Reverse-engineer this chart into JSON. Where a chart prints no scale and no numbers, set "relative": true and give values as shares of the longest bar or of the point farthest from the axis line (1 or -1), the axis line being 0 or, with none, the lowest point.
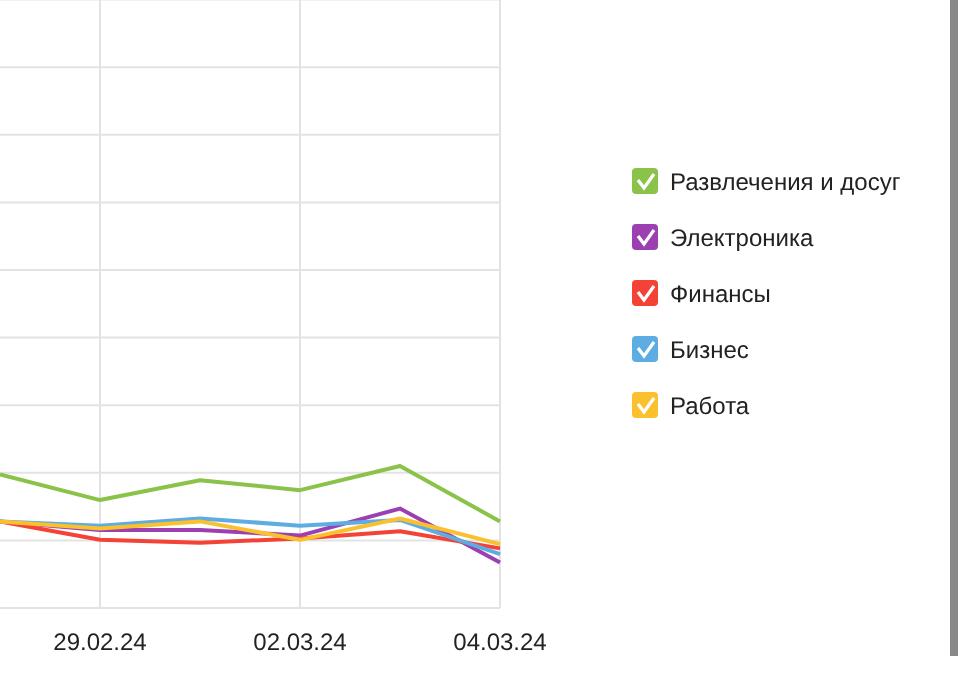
{
  "chart_data": {
    "type": "line",
    "relative": true,
    "x": [
      "2024-02-28",
      "2024-02-29",
      "2024-03-01",
      "2024-03-02",
      "2024-03-03",
      "2024-03-04"
    ],
    "xlim": [
      "2024-02-28",
      "2024-03-04"
    ],
    "xticks": [
      {
        "value": "2024-02-29",
        "label": "29.02.24"
      },
      {
        "value": "2024-03-02",
        "label": "02.03.24"
      },
      {
        "value": "2024-03-04",
        "label": "04.03.24"
      }
    ],
    "series": [
      {
        "name": "Развлечения и досуг",
        "color": "#8bc34a",
        "values": [
          0.94,
          0.76,
          0.9,
          0.83,
          1,
          0.61
        ]
      },
      {
        "name": "Электроника",
        "color": "#9c3fb0",
        "values": [
          0.61,
          0.55,
          0.55,
          0.51,
          0.7,
          0.32
        ]
      },
      {
        "name": "Финансы",
        "color": "#f44336",
        "values": [
          0.61,
          0.48,
          0.46,
          0.49,
          0.54,
          0.42
        ]
      },
      {
        "name": "Бизнес",
        "color": "#5dade2",
        "values": [
          0.61,
          0.58,
          0.63,
          0.58,
          0.62,
          0.38
        ]
      },
      {
        "name": "Работа",
        "color": "#fbc02d",
        "values": [
          0.61,
          0.56,
          0.61,
          0.48,
          0.63,
          0.45
        ]
      }
    ],
    "grid": true,
    "legend": "right",
    "marker": "none",
    "line_style": "solid"
  }
}
